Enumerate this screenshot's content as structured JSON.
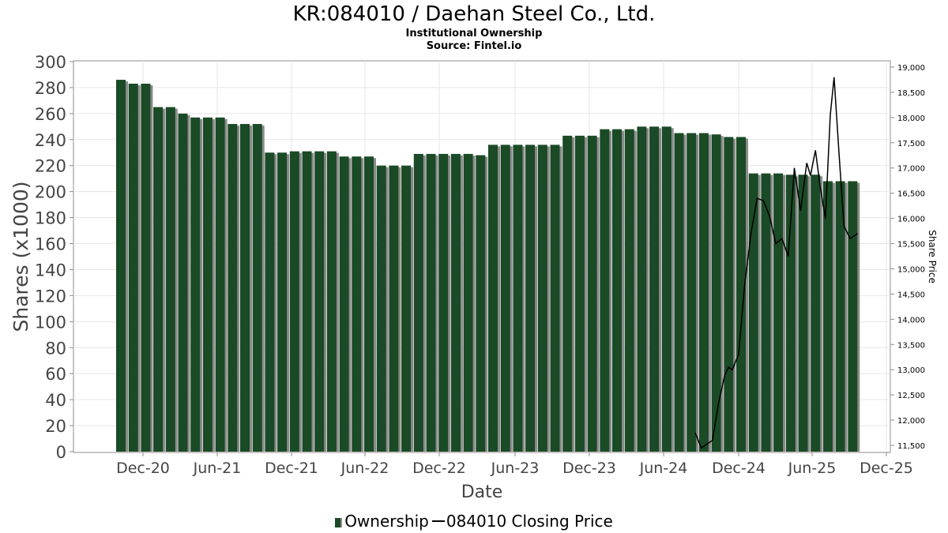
{
  "title": "KR:084010 / Daehan Steel Co., Ltd.",
  "subtitle": "Institutional Ownership",
  "source": "Source: Fintel.io",
  "chart_data": {
    "type": "bar",
    "xlabel": "Date",
    "ylabel": "Shares (x1000)",
    "y2label": "Share Price",
    "x_tick_labels": [
      "Dec-20",
      "Jun-21",
      "Dec-21",
      "Jun-22",
      "Dec-22",
      "Jun-23",
      "Dec-23",
      "Jun-24",
      "Dec-24",
      "Jun-25",
      "Dec-25"
    ],
    "y_tick_labels": [
      "0",
      "20",
      "40",
      "60",
      "80",
      "100",
      "120",
      "140",
      "160",
      "180",
      "200",
      "220",
      "240",
      "260",
      "280",
      "300"
    ],
    "y2_tick_labels": [
      "11,500",
      "12,000",
      "12,500",
      "13,000",
      "13,500",
      "14,000",
      "14,500",
      "15,000",
      "15,500",
      "16,000",
      "16,500",
      "17,000",
      "17,500",
      "18,000",
      "18,500",
      "19,000"
    ],
    "ylim": [
      0,
      300
    ],
    "y2lim": [
      11450,
      19100
    ],
    "grid": true,
    "legend_position": "bottom",
    "series": [
      {
        "name": "Ownership",
        "type": "bar",
        "color": "#1b4a26",
        "values": [
          286,
          283,
          283,
          265,
          265,
          260,
          257,
          257,
          257,
          252,
          252,
          252,
          230,
          230,
          231,
          231,
          231,
          231,
          227,
          227,
          227,
          220,
          220,
          220,
          229,
          229,
          229,
          229,
          229,
          228,
          236,
          236,
          236,
          236,
          236,
          236,
          243,
          243,
          243,
          248,
          248,
          248,
          250,
          250,
          250,
          245,
          245,
          245,
          244,
          242,
          242,
          214,
          214,
          214,
          213,
          213,
          213,
          208,
          208,
          208
        ]
      },
      {
        "name": "084010 Closing Price",
        "type": "line",
        "color": "#000000",
        "points": [
          {
            "x": 46.3,
            "y": 11750
          },
          {
            "x": 46.8,
            "y": 11450
          },
          {
            "x": 47.7,
            "y": 11600
          },
          {
            "x": 48.2,
            "y": 12350
          },
          {
            "x": 48.7,
            "y": 12900
          },
          {
            "x": 49.0,
            "y": 13050
          },
          {
            "x": 49.3,
            "y": 13000
          },
          {
            "x": 49.8,
            "y": 13300
          },
          {
            "x": 50.3,
            "y": 14700
          },
          {
            "x": 50.8,
            "y": 15700
          },
          {
            "x": 51.3,
            "y": 16400
          },
          {
            "x": 51.8,
            "y": 16350
          },
          {
            "x": 52.3,
            "y": 16050
          },
          {
            "x": 52.8,
            "y": 15500
          },
          {
            "x": 53.3,
            "y": 15600
          },
          {
            "x": 53.8,
            "y": 15250
          },
          {
            "x": 54.3,
            "y": 17000
          },
          {
            "x": 54.8,
            "y": 16150
          },
          {
            "x": 55.3,
            "y": 17100
          },
          {
            "x": 55.6,
            "y": 16850
          },
          {
            "x": 56.0,
            "y": 17350
          },
          {
            "x": 56.4,
            "y": 16600
          },
          {
            "x": 56.8,
            "y": 16000
          },
          {
            "x": 57.2,
            "y": 18050
          },
          {
            "x": 57.5,
            "y": 18800
          },
          {
            "x": 57.9,
            "y": 17300
          },
          {
            "x": 58.3,
            "y": 15850
          },
          {
            "x": 58.8,
            "y": 15600
          },
          {
            "x": 59.4,
            "y": 15700
          }
        ]
      }
    ]
  }
}
